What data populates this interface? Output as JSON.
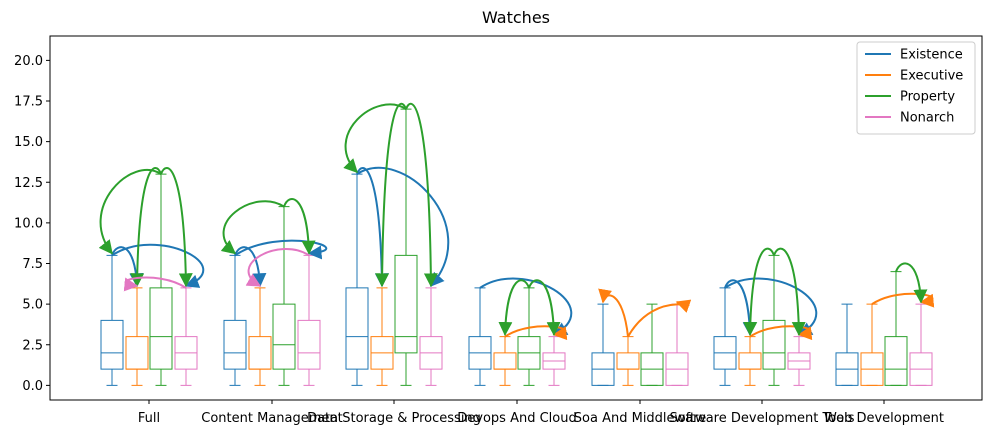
{
  "chart_data": {
    "type": "boxplot",
    "title": "Watches",
    "xlabel": "",
    "ylabel": "",
    "ylim": [
      -0.9,
      21.5
    ],
    "yticks": [
      "0.0",
      "2.5",
      "5.0",
      "7.5",
      "10.0",
      "12.5",
      "15.0",
      "17.5",
      "20.0"
    ],
    "grid": false,
    "legend_position": "top-right",
    "categories": [
      "Full",
      "Content Management",
      "Data Storage & Processing",
      "Devops And Cloud",
      "Soa And Middleware",
      "Software Development Tools",
      "Web Development"
    ],
    "series": [
      {
        "name": "Existence",
        "color": "#1f77b4",
        "boxes": [
          {
            "min": 0,
            "q1": 1,
            "median": 2,
            "q3": 4,
            "max": 8
          },
          {
            "min": 0,
            "q1": 1,
            "median": 2,
            "q3": 4,
            "max": 8
          },
          {
            "min": 0,
            "q1": 1,
            "median": 3,
            "q3": 6,
            "max": 13
          },
          {
            "min": 0,
            "q1": 1,
            "median": 2,
            "q3": 3,
            "max": 6
          },
          {
            "min": 0,
            "q1": 0,
            "median": 1,
            "q3": 2,
            "max": 5
          },
          {
            "min": 0,
            "q1": 1,
            "median": 2,
            "q3": 3,
            "max": 6
          },
          {
            "min": 0,
            "q1": 0,
            "median": 1,
            "q3": 2,
            "max": 5
          }
        ]
      },
      {
        "name": "Executive",
        "color": "#ff7f0e",
        "boxes": [
          {
            "min": 0,
            "q1": 1,
            "median": 1,
            "q3": 3,
            "max": 6
          },
          {
            "min": 0,
            "q1": 1,
            "median": 1,
            "q3": 3,
            "max": 6
          },
          {
            "min": 0,
            "q1": 1,
            "median": 2,
            "q3": 3,
            "max": 6
          },
          {
            "min": 0,
            "q1": 1,
            "median": 1,
            "q3": 2,
            "max": 3
          },
          {
            "min": 0,
            "q1": 1,
            "median": 1,
            "q3": 2,
            "max": 3
          },
          {
            "min": 0,
            "q1": 1,
            "median": 1,
            "q3": 2,
            "max": 3
          },
          {
            "min": 0,
            "q1": 0,
            "median": 1,
            "q3": 2,
            "max": 5
          }
        ]
      },
      {
        "name": "Property",
        "color": "#2ca02c",
        "boxes": [
          {
            "min": 0,
            "q1": 1,
            "median": 3,
            "q3": 6,
            "max": 13
          },
          {
            "min": 0,
            "q1": 1,
            "median": 2.5,
            "q3": 5,
            "max": 11
          },
          {
            "min": 0,
            "q1": 2,
            "median": 3,
            "q3": 8,
            "max": 17
          },
          {
            "min": 0,
            "q1": 1,
            "median": 2,
            "q3": 3,
            "max": 6
          },
          {
            "min": 0,
            "q1": 0,
            "median": 1,
            "q3": 2,
            "max": 5
          },
          {
            "min": 0,
            "q1": 1,
            "median": 2,
            "q3": 4,
            "max": 8
          },
          {
            "min": 0,
            "q1": 0,
            "median": 1,
            "q3": 3,
            "max": 7
          }
        ]
      },
      {
        "name": "Nonarch",
        "color": "#e377c2",
        "boxes": [
          {
            "min": 0,
            "q1": 1,
            "median": 2,
            "q3": 3,
            "max": 6
          },
          {
            "min": 0,
            "q1": 1,
            "median": 2,
            "q3": 4,
            "max": 8
          },
          {
            "min": 0,
            "q1": 1,
            "median": 2,
            "q3": 3,
            "max": 6
          },
          {
            "min": 0,
            "q1": 1,
            "median": 1.5,
            "q3": 2,
            "max": 3
          },
          {
            "min": 0,
            "q1": 0,
            "median": 1,
            "q3": 2,
            "max": 5
          },
          {
            "min": 0,
            "q1": 1,
            "median": 1.5,
            "q3": 2,
            "max": 3
          },
          {
            "min": 0,
            "q1": 0,
            "median": 1,
            "q3": 2,
            "max": 5
          }
        ]
      }
    ],
    "arrows": [
      {
        "category": 0,
        "from": 0,
        "to": 1,
        "color": "#1f77b4"
      },
      {
        "category": 0,
        "from": 0,
        "to": 3,
        "color": "#1f77b4"
      },
      {
        "category": 0,
        "from": 2,
        "to": 0,
        "color": "#2ca02c"
      },
      {
        "category": 0,
        "from": 2,
        "to": 1,
        "color": "#2ca02c"
      },
      {
        "category": 0,
        "from": 2,
        "to": 3,
        "color": "#2ca02c"
      },
      {
        "category": 0,
        "from": 3,
        "to": 1,
        "color": "#e377c2"
      },
      {
        "category": 1,
        "from": 0,
        "to": 1,
        "color": "#1f77b4"
      },
      {
        "category": 1,
        "from": 0,
        "to": 3,
        "color": "#1f77b4"
      },
      {
        "category": 1,
        "from": 2,
        "to": 0,
        "color": "#2ca02c"
      },
      {
        "category": 1,
        "from": 2,
        "to": 3,
        "color": "#2ca02c"
      },
      {
        "category": 1,
        "from": 3,
        "to": 1,
        "color": "#e377c2"
      },
      {
        "category": 2,
        "from": 0,
        "to": 1,
        "color": "#1f77b4"
      },
      {
        "category": 2,
        "from": 0,
        "to": 3,
        "color": "#1f77b4"
      },
      {
        "category": 2,
        "from": 2,
        "to": 0,
        "color": "#2ca02c"
      },
      {
        "category": 2,
        "from": 2,
        "to": 1,
        "color": "#2ca02c"
      },
      {
        "category": 2,
        "from": 2,
        "to": 3,
        "color": "#2ca02c"
      },
      {
        "category": 3,
        "from": 0,
        "to": 3,
        "color": "#1f77b4"
      },
      {
        "category": 3,
        "from": 1,
        "to": 3,
        "color": "#ff7f0e"
      },
      {
        "category": 3,
        "from": 2,
        "to": 1,
        "color": "#2ca02c"
      },
      {
        "category": 3,
        "from": 2,
        "to": 3,
        "color": "#2ca02c"
      },
      {
        "category": 4,
        "from": 1,
        "to": 0,
        "color": "#ff7f0e"
      },
      {
        "category": 4,
        "from": 1,
        "to": 3,
        "color": "#ff7f0e"
      },
      {
        "category": 5,
        "from": 0,
        "to": 1,
        "color": "#1f77b4"
      },
      {
        "category": 5,
        "from": 0,
        "to": 3,
        "color": "#1f77b4"
      },
      {
        "category": 5,
        "from": 1,
        "to": 3,
        "color": "#ff7f0e"
      },
      {
        "category": 5,
        "from": 2,
        "to": 1,
        "color": "#2ca02c"
      },
      {
        "category": 5,
        "from": 2,
        "to": 3,
        "color": "#2ca02c"
      },
      {
        "category": 6,
        "from": 1,
        "to": 3,
        "color": "#ff7f0e"
      },
      {
        "category": 6,
        "from": 2,
        "to": 3,
        "color": "#2ca02c"
      }
    ]
  }
}
